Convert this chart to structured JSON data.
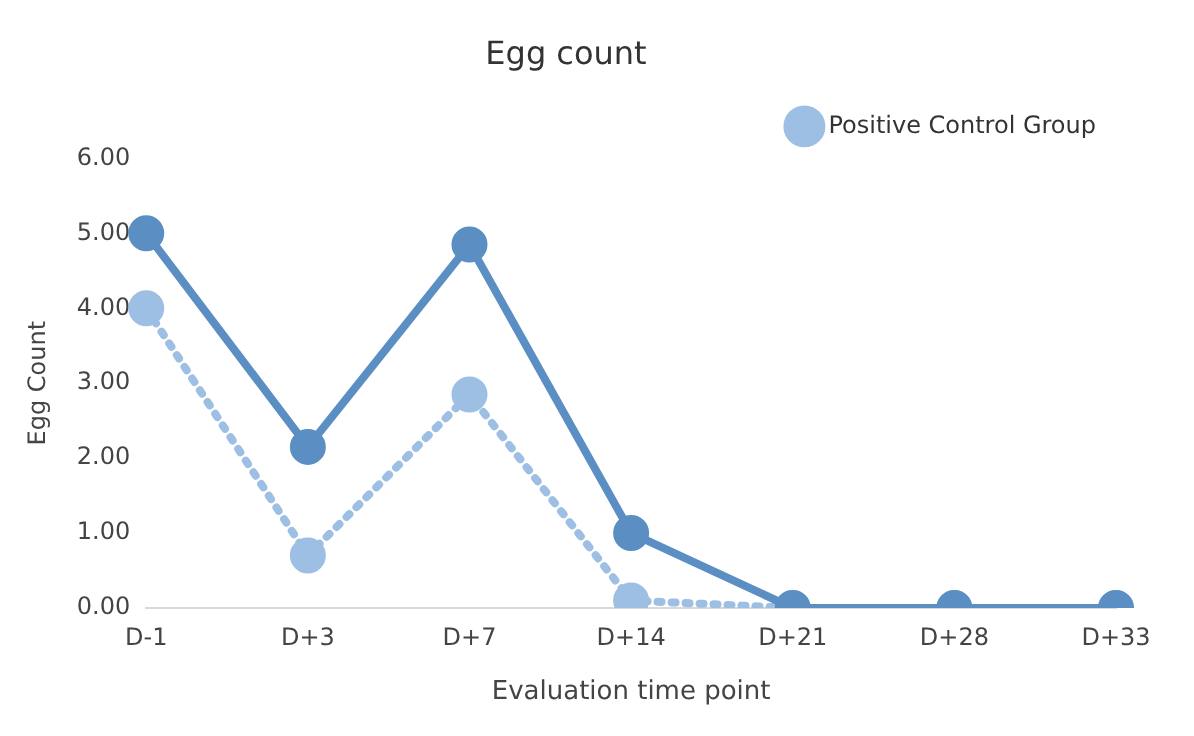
{
  "chart_data": {
    "type": "line",
    "title": "Egg count",
    "xlabel": "Evaluation time point",
    "ylabel": "Egg Count",
    "categories": [
      "D-1",
      "D+3",
      "D+7",
      "D+14",
      "D+21",
      "D+28",
      "D+33"
    ],
    "series": [
      {
        "color": "#5b8fc4",
        "line_style": "solid",
        "values": [
          5.0,
          2.15,
          4.85,
          1.0,
          0,
          0,
          0
        ]
      },
      {
        "name": "Positive Control Group",
        "color": "#9dbfe3",
        "line_style": "dotted",
        "values": [
          4.0,
          0.7,
          2.85,
          0.1,
          0,
          0,
          0
        ]
      }
    ],
    "ylim": [
      0,
      6
    ],
    "yticks": [
      {
        "value": 0,
        "label": "0.00"
      },
      {
        "value": 1,
        "label": "1.00"
      },
      {
        "value": 2,
        "label": "2.00"
      },
      {
        "value": 3,
        "label": "3.00"
      },
      {
        "value": 4,
        "label": "4.00"
      },
      {
        "value": 5,
        "label": "5.00"
      },
      {
        "value": 6,
        "label": "6.00"
      }
    ],
    "grid": false,
    "legend": "top right",
    "marker": "circle"
  }
}
